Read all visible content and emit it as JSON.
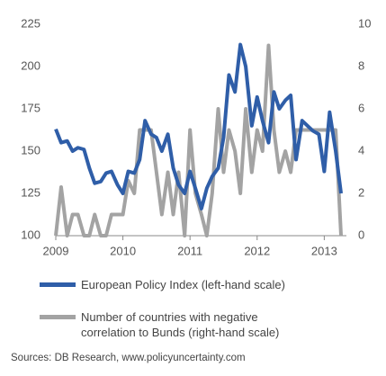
{
  "chart_data": {
    "type": "line",
    "x": [
      2009.0,
      2009.08,
      2009.17,
      2009.25,
      2009.33,
      2009.42,
      2009.5,
      2009.58,
      2009.67,
      2009.75,
      2009.83,
      2009.92,
      2010.0,
      2010.08,
      2010.17,
      2010.25,
      2010.33,
      2010.42,
      2010.5,
      2010.58,
      2010.67,
      2010.75,
      2010.83,
      2010.92,
      2011.0,
      2011.08,
      2011.17,
      2011.25,
      2011.33,
      2011.42,
      2011.5,
      2011.58,
      2011.67,
      2011.75,
      2011.83,
      2011.92,
      2012.0,
      2012.08,
      2012.17,
      2012.25,
      2012.33,
      2012.42,
      2012.5,
      2012.58,
      2012.67,
      2012.75,
      2012.83,
      2012.92,
      2013.0,
      2013.08,
      2013.17,
      2013.25
    ],
    "series": [
      {
        "name": "European Policy Index (left-hand scale)",
        "color": "#2f5ea8",
        "values": [
          163,
          155,
          156,
          150,
          152,
          151,
          140,
          131,
          132,
          137,
          138,
          130,
          125,
          138,
          137,
          145,
          168,
          160,
          158,
          150,
          160,
          140,
          130,
          125,
          138,
          128,
          116,
          128,
          135,
          140,
          158,
          195,
          185,
          213,
          200,
          165,
          182,
          168,
          155,
          185,
          175,
          180,
          183,
          145,
          168,
          165,
          162,
          160,
          138,
          173,
          150,
          125
        ]
      },
      {
        "name": "Number of countries with negative correlation to Bunds (right-hand scale)",
        "color": "#a3a3a3",
        "axis": "y2",
        "values": [
          0,
          2.3,
          0,
          1,
          1,
          0,
          0,
          1,
          0,
          0,
          1,
          1,
          1,
          2.6,
          2,
          5,
          5,
          5,
          3,
          1,
          3,
          1,
          3,
          0,
          5,
          2,
          1,
          0,
          2,
          6,
          3,
          5,
          4,
          2,
          6,
          3,
          5,
          4,
          9,
          5,
          3,
          4,
          3,
          5,
          5,
          5,
          5,
          5,
          5,
          5,
          5,
          0
        ]
      }
    ],
    "xlim": [
      2009,
      2013.33
    ],
    "xticks": [
      2009,
      2010,
      2011,
      2012,
      2013
    ],
    "ylim": [
      100,
      225
    ],
    "yticks": [
      100,
      125,
      150,
      175,
      200,
      225
    ],
    "y2lim": [
      0,
      10
    ],
    "y2ticks": [
      0,
      2,
      4,
      6,
      8,
      10
    ],
    "grid": false,
    "source": "Sources: DB Research, www.policyuncertainty.com"
  }
}
